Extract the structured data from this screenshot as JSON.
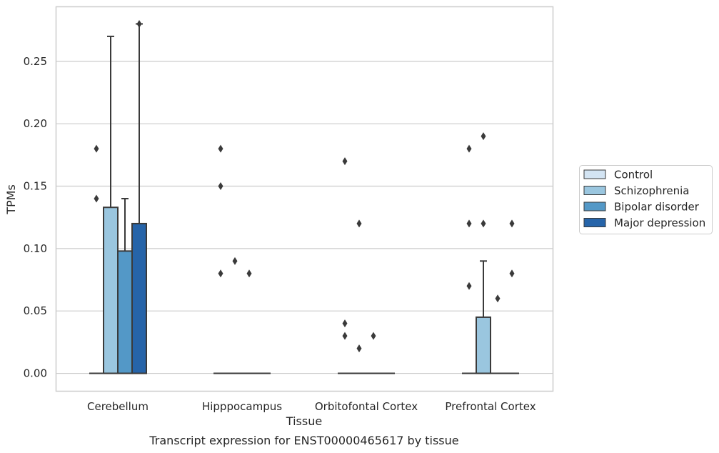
{
  "caption": "Transcript expression for ENST00000465617 by tissue",
  "chart_data": {
    "type": "box",
    "xlabel": "Tissue",
    "ylabel": "TPMs",
    "ylim": [
      -0.014,
      0.294
    ],
    "yticks": [
      "0.00",
      "0.05",
      "0.10",
      "0.15",
      "0.20",
      "0.25"
    ],
    "grid": "horizontal",
    "legend_position": "right",
    "categories": [
      "Cerebellum",
      "Hipppocampus",
      "Orbitofontal Cortex",
      "Prefrontal Cortex"
    ],
    "series": [
      {
        "name": "Control",
        "color": "#d3e4f3"
      },
      {
        "name": "Schizophrenia",
        "color": "#9ac6df"
      },
      {
        "name": "Bipolar disorder",
        "color": "#5398c7"
      },
      {
        "name": "Major depression",
        "color": "#2664a9"
      }
    ],
    "boxes": [
      [
        {
          "q1": 0,
          "median": 0,
          "q3": 0,
          "whisker_high": 0,
          "outliers": [
            0.14,
            0.18
          ]
        },
        {
          "q1": 0,
          "median": 0,
          "q3": 0.133,
          "whisker_high": 0.27,
          "outliers": []
        },
        {
          "q1": 0,
          "median": 0,
          "q3": 0.098,
          "whisker_high": 0.14,
          "outliers": []
        },
        {
          "q1": 0,
          "median": 0,
          "q3": 0.12,
          "whisker_high": 0.28,
          "outliers": [
            0.28
          ]
        }
      ],
      [
        {
          "q1": 0,
          "median": 0,
          "q3": 0,
          "whisker_high": 0,
          "outliers": [
            0.08,
            0.15,
            0.18
          ]
        },
        {
          "q1": 0,
          "median": 0,
          "q3": 0,
          "whisker_high": 0,
          "outliers": [
            0.09
          ]
        },
        {
          "q1": 0,
          "median": 0,
          "q3": 0,
          "whisker_high": 0,
          "outliers": [
            0.08
          ]
        },
        {
          "q1": 0,
          "median": 0,
          "q3": 0,
          "whisker_high": 0,
          "outliers": []
        }
      ],
      [
        {
          "q1": 0,
          "median": 0,
          "q3": 0,
          "whisker_high": 0,
          "outliers": [
            0.03,
            0.04,
            0.17
          ]
        },
        {
          "q1": 0,
          "median": 0,
          "q3": 0,
          "whisker_high": 0,
          "outliers": [
            0.02,
            0.12
          ]
        },
        {
          "q1": 0,
          "median": 0,
          "q3": 0,
          "whisker_high": 0,
          "outliers": [
            0.03
          ]
        },
        {
          "q1": 0,
          "median": 0,
          "q3": 0,
          "whisker_high": 0,
          "outliers": []
        }
      ],
      [
        {
          "q1": 0,
          "median": 0,
          "q3": 0,
          "whisker_high": 0,
          "outliers": [
            0.07,
            0.12,
            0.18
          ]
        },
        {
          "q1": 0,
          "median": 0,
          "q3": 0.045,
          "whisker_high": 0.09,
          "outliers": [
            0.12,
            0.19
          ]
        },
        {
          "q1": 0,
          "median": 0,
          "q3": 0,
          "whisker_high": 0,
          "outliers": [
            0.06
          ]
        },
        {
          "q1": 0,
          "median": 0,
          "q3": 0,
          "whisker_high": 0,
          "outliers": [
            0.08,
            0.12
          ]
        }
      ]
    ]
  }
}
